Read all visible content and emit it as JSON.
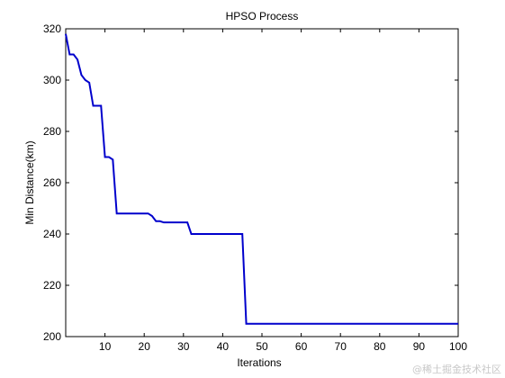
{
  "chart_data": {
    "type": "line",
    "title": "HPSO Process",
    "xlabel": "Iterations",
    "ylabel": "Min Distance(km)",
    "xlim": [
      0,
      100
    ],
    "ylim": [
      200,
      320
    ],
    "xticks": [
      10,
      20,
      30,
      40,
      50,
      60,
      70,
      80,
      90,
      100
    ],
    "yticks": [
      200,
      220,
      240,
      260,
      280,
      300,
      320
    ],
    "grid": false,
    "series": [
      {
        "color": "#0000cc",
        "x": [
          0,
          1,
          2,
          3,
          4,
          5,
          6,
          7,
          8,
          9,
          10,
          11,
          12,
          13,
          20,
          21,
          22,
          23,
          24,
          25,
          30,
          31,
          32,
          44,
          45,
          46,
          100
        ],
        "y": [
          318,
          310,
          310,
          308,
          302,
          300,
          299,
          290,
          290,
          290,
          270,
          270,
          269,
          248,
          248,
          248,
          247,
          245,
          245,
          244.5,
          244.5,
          244.5,
          240,
          240,
          240,
          205,
          205
        ]
      }
    ]
  },
  "watermark": "@稀土掘金技术社区"
}
